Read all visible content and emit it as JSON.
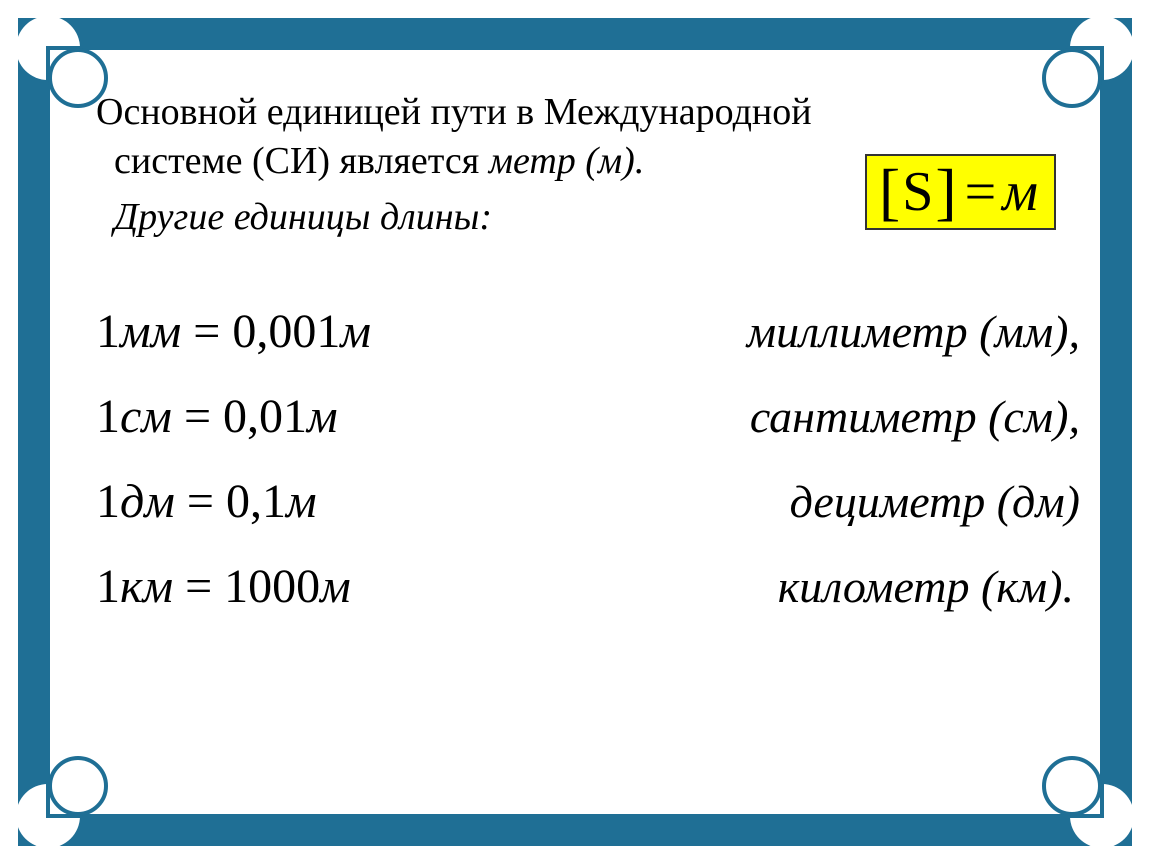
{
  "frame": {
    "outer_color": "#1f6f95",
    "inner_bg": "#ffffff",
    "border_width": 4
  },
  "intro": {
    "line1": "Основной единицей пути в Международной",
    "line2_a": "системе (СИ) является ",
    "line2_b": "метр (м).",
    "line3": "Другие единицы длины:"
  },
  "highlight": {
    "lbracket": "[",
    "s": "S",
    "rbracket": "]",
    "eq": "=",
    "m": "м",
    "bg_color": "#ffff00"
  },
  "conversions": [
    {
      "lhs_val": "1",
      "lhs_unit": "мм",
      "eq": "=",
      "rhs_val": "0,001",
      "rhs_unit": "м",
      "label": "миллиметр (мм),"
    },
    {
      "lhs_val": "1",
      "lhs_unit": "см",
      "eq": "=",
      "rhs_val": "0,01",
      "rhs_unit": "м",
      "label": "сантиметр (см),"
    },
    {
      "lhs_val": "1",
      "lhs_unit": "дм",
      "eq": "=",
      "rhs_val": "0,1",
      "rhs_unit": "м",
      "label": "дециметр (дм)"
    },
    {
      "lhs_val": "1",
      "lhs_unit": "км",
      "eq": "=",
      "rhs_val": "1000",
      "rhs_unit": "м",
      "label": "километр (км)."
    }
  ],
  "typography": {
    "font_family": "Times New Roman",
    "intro_fontsize": 38,
    "equation_fontsize": 48,
    "label_fontsize": 46,
    "highlight_fontsize": 56,
    "text_color": "#000000"
  }
}
